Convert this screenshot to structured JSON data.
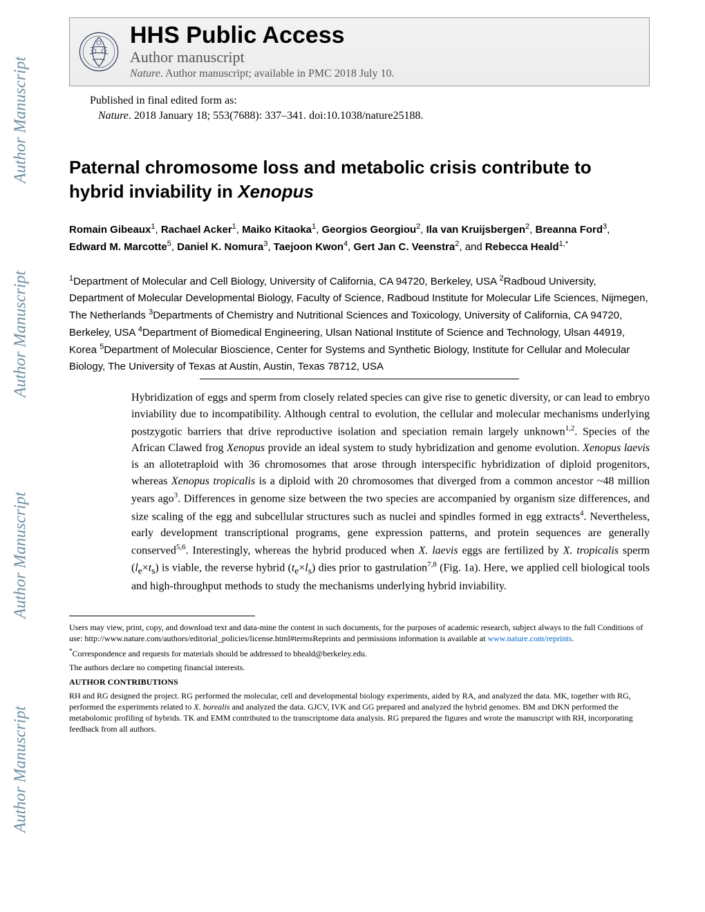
{
  "watermark": {
    "text": "Author Manuscript",
    "color": "#6b8fa3",
    "fontsize": 24
  },
  "header": {
    "hhs_title": "HHS Public Access",
    "subtitle": "Author manuscript",
    "journal_line_prefix": "Nature",
    "journal_line_rest": ". Author manuscript; available in PMC 2018 July 10."
  },
  "published": {
    "line1": "Published in final edited form as:",
    "citation_journal": "Nature",
    "citation_rest": ". 2018 January 18; 553(7688): 337–341. doi:10.1038/nature25188."
  },
  "title": {
    "part1": "Paternal chromosome loss and metabolic crisis contribute to hybrid inviability in ",
    "species": "Xenopus"
  },
  "authors": [
    {
      "name": "Romain Gibeaux",
      "aff": "1"
    },
    {
      "name": "Rachael Acker",
      "aff": "1"
    },
    {
      "name": "Maiko Kitaoka",
      "aff": "1"
    },
    {
      "name": "Georgios Georgiou",
      "aff": "2"
    },
    {
      "name": "Ila van Kruijsbergen",
      "aff": "2"
    },
    {
      "name": "Breanna Ford",
      "aff": "3"
    },
    {
      "name": "Edward M. Marcotte",
      "aff": "5"
    },
    {
      "name": "Daniel K. Nomura",
      "aff": "3"
    },
    {
      "name": "Taejoon Kwon",
      "aff": "4"
    },
    {
      "name": "Gert Jan C. Veenstra",
      "aff": "2"
    },
    {
      "name": "Rebecca Heald",
      "aff": "1,*"
    }
  ],
  "affiliations": {
    "text_parts": [
      {
        "sup": "1",
        "text": "Department of Molecular and Cell Biology, University of California, CA 94720, Berkeley, USA "
      },
      {
        "sup": "2",
        "text": "Radboud University, Department of Molecular Developmental Biology, Faculty of Science, Radboud Institute for Molecular Life Sciences, Nijmegen, The Netherlands "
      },
      {
        "sup": "3",
        "text": "Departments of Chemistry and Nutritional Sciences and Toxicology, University of California, CA 94720, Berkeley, USA "
      },
      {
        "sup": "4",
        "text": "Department of Biomedical Engineering, Ulsan National Institute of Science and Technology, Ulsan 44919, Korea "
      },
      {
        "sup": "5",
        "text": "Department of Molecular Bioscience, Center for Systems and Synthetic Biology, Institute for Cellular and Molecular Biology, The University of Texas at Austin, Austin, Texas 78712, USA"
      }
    ]
  },
  "abstract": {
    "text": "Hybridization of eggs and sperm from closely related species can give rise to genetic diversity, or can lead to embryo inviability due to incompatibility. Although central to evolution, the cellular and molecular mechanisms underlying postzygotic barriers that drive reproductive isolation and speciation remain largely unknown<sup>1,2</sup>. Species of the African Clawed frog <i>Xenopus</i> provide an ideal system to study hybridization and genome evolution. <i>Xenopus laevis</i> is an allotetraploid with 36 chromosomes that arose through interspecific hybridization of diploid progenitors, whereas <i>Xenopus tropicalis</i> is a diploid with 20 chromosomes that diverged from a common ancestor ~48 million years ago<sup>3</sup>. Differences in genome size between the two species are accompanied by organism size differences, and size scaling of the egg and subcellular structures such as nuclei and spindles formed in egg extracts<sup>4</sup>. Nevertheless, early development transcriptional programs, gene expression patterns, and protein sequences are generally conserved<sup>5,6</sup>. Interestingly, whereas the hybrid produced when <i>X. laevis</i> eggs are fertilized by <i>X. tropicalis</i> sperm (<i>l</i><sub>e</sub>×<i>t</i><sub>s</sub>) is viable, the reverse hybrid (<i>t</i><sub>e</sub>×<i>l</i><sub>s</sub>) dies prior to gastrulation<sup>7,8</sup> (Fig. 1a). Here, we applied cell biological tools and high-throughput methods to study the mechanisms underlying hybrid inviability."
  },
  "footnotes": {
    "users": "Users may view, print, copy, and download text and data-mine the content in such documents, for the purposes of academic research, subject always to the full Conditions of use: http://www.nature.com/authors/editorial_policies/license.html#termsReprints and permissions information is available at ",
    "reprints_link": "www.nature.com/reprints",
    "correspondence": "Correspondence and requests for materials should be addressed to bheald@berkeley.edu.",
    "competing": "The authors declare no competing financial interests.",
    "contrib_heading": "AUTHOR CONTRIBUTIONS",
    "contrib_text": "RH and RG designed the project. RG performed the molecular, cell and developmental biology experiments, aided by RA, and analyzed the data. MK, together with RG, performed the experiments related to <i>X. borealis</i> and analyzed the data. GJCV, IVK and GG prepared and analyzed the hybrid genomes. BM and DKN performed the metabolomic profiling of hybrids. TK and EMM contributed to the transcriptome data analysis. RG prepared the figures and wrote the manuscript with RH, incorporating feedback from all authors."
  },
  "logo": {
    "stroke_color": "#2b3a5c"
  }
}
